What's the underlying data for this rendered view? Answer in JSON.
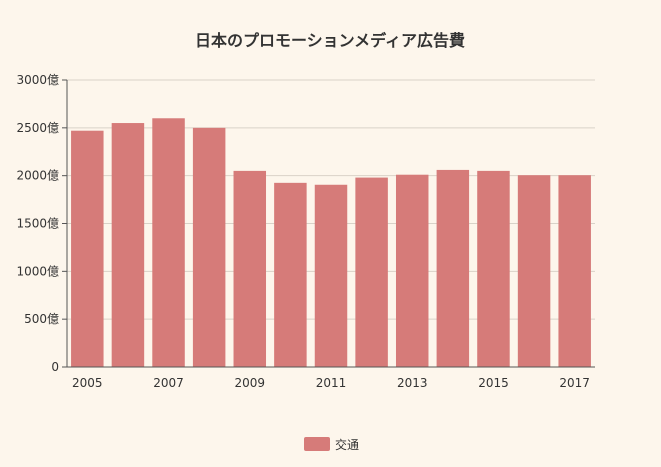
{
  "chart_data": {
    "type": "bar",
    "title": "日本のプロモーションメディア広告費",
    "categories": [
      "2005",
      "2006",
      "2007",
      "2008",
      "2009",
      "2010",
      "2011",
      "2012",
      "2013",
      "2014",
      "2015",
      "2016",
      "2017"
    ],
    "x_tick_labels": [
      "2005",
      "2007",
      "2009",
      "2011",
      "2013",
      "2015",
      "2017"
    ],
    "series": [
      {
        "name": "交通",
        "values": [
          2470,
          2550,
          2600,
          2500,
          2050,
          1925,
          1905,
          1980,
          2010,
          2060,
          2050,
          2005,
          2005
        ]
      }
    ],
    "ylim": [
      0,
      3000
    ],
    "y_ticks": [
      0,
      500,
      1000,
      1500,
      2000,
      2500,
      3000
    ],
    "y_tick_labels": [
      "0",
      "500億",
      "1000億",
      "1500億",
      "2000億",
      "2500億",
      "3000億"
    ],
    "grid": true,
    "legend_position": "bottom",
    "colors": {
      "bar": "#d67b79",
      "background": "#fdf6ec",
      "grid": "#d9d2c8"
    }
  }
}
